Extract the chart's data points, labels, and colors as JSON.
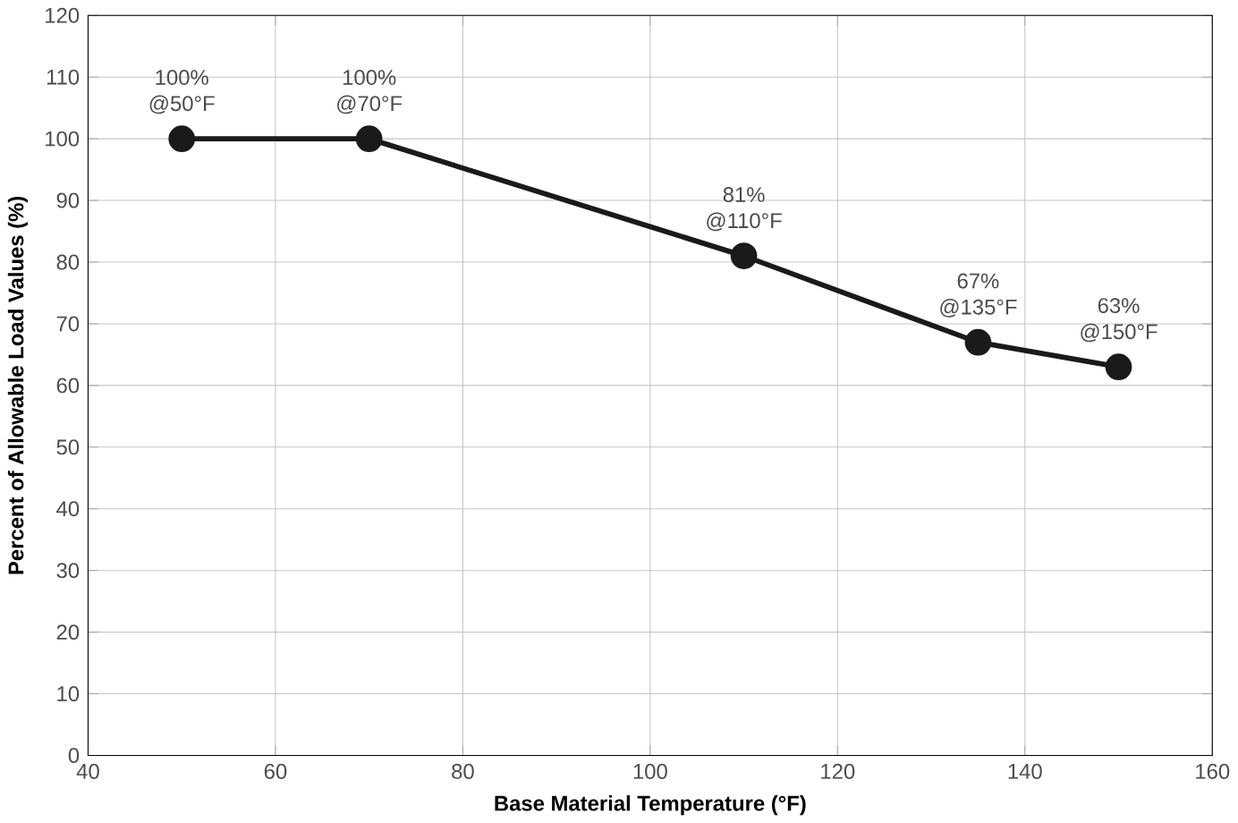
{
  "chart_data": {
    "type": "line",
    "xlabel": "Base Material Temperature (°F)",
    "ylabel": "Percent of Allowable Load Values (%)",
    "x": [
      50,
      70,
      110,
      135,
      150
    ],
    "series": [
      {
        "color": "#1a1a1a",
        "values": [
          100,
          100,
          81,
          67,
          63
        ]
      }
    ],
    "xlim": [
      40,
      160
    ],
    "xticks": [
      40,
      60,
      80,
      100,
      120,
      140,
      160
    ],
    "ylim": [
      0,
      120
    ],
    "yticks": [
      0,
      10,
      20,
      30,
      40,
      50,
      60,
      70,
      80,
      90,
      100,
      110,
      120
    ],
    "grid": true,
    "marker": "circle",
    "line_style": "solid",
    "annotations": [
      {
        "text": "100% @50°F",
        "x": 50,
        "y": 100
      },
      {
        "text": "100% @70°F",
        "x": 70,
        "y": 100
      },
      {
        "text": "81% @110°F",
        "x": 110,
        "y": 81
      },
      {
        "text": "67% @135°F",
        "x": 135,
        "y": 67
      },
      {
        "text": "63% @150°F",
        "x": 150,
        "y": 63
      }
    ]
  }
}
